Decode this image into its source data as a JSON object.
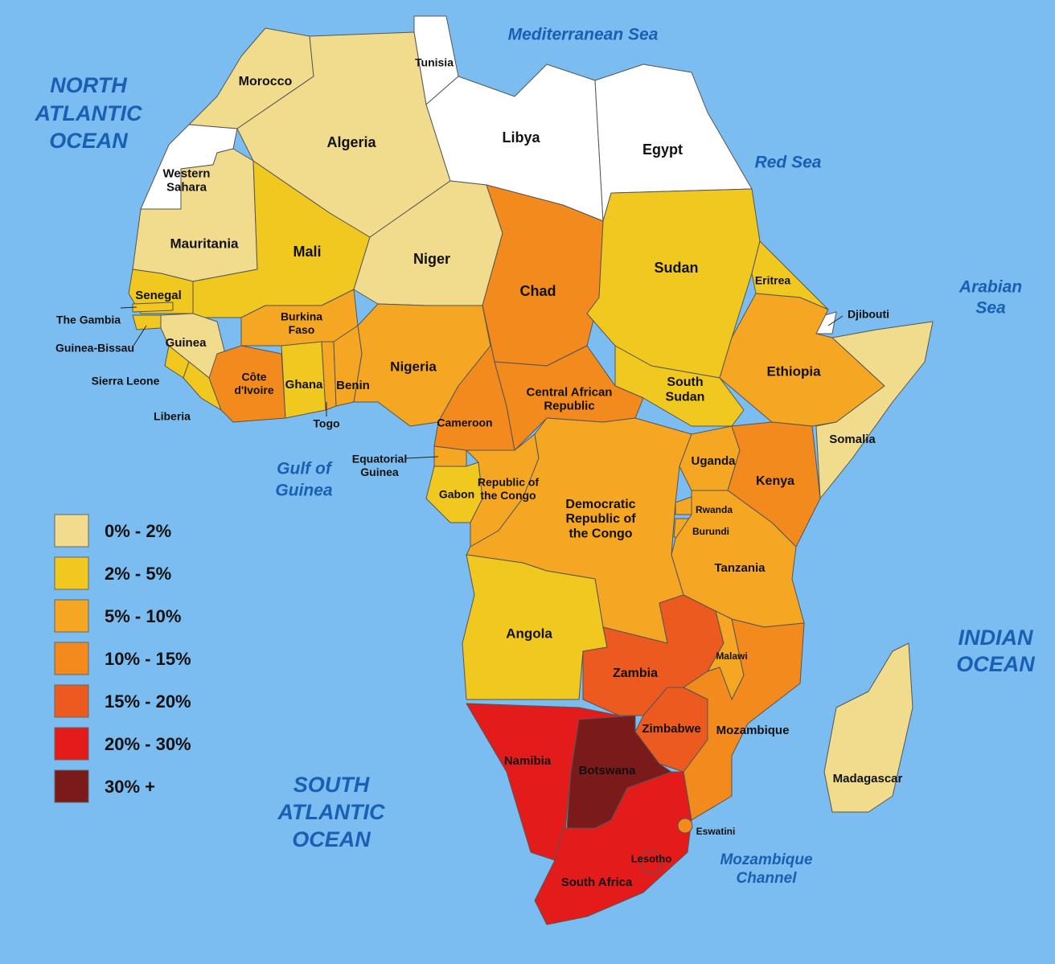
{
  "map": {
    "ocean_color": "#7bbdf0",
    "no_data_color": "#ffffff",
    "legend": [
      {
        "label": "0% - 2%",
        "color": "#f0dc8c"
      },
      {
        "label": "2% - 5%",
        "color": "#f0c820"
      },
      {
        "label": "5% - 10%",
        "color": "#f5a623"
      },
      {
        "label": "10% - 15%",
        "color": "#f28a1e"
      },
      {
        "label": "15% - 20%",
        "color": "#ec5a20"
      },
      {
        "label": "20% - 30%",
        "color": "#e31b1b"
      },
      {
        "label": "30% +",
        "color": "#7a1a1a"
      }
    ],
    "countries": [
      {
        "label": [
          "Morocco"
        ],
        "class": 0
      },
      {
        "label": [
          "Western",
          "Sahara"
        ],
        "class": null
      },
      {
        "label": [
          "Algeria"
        ],
        "class": 0
      },
      {
        "label": [
          "Tunisia"
        ],
        "class": null
      },
      {
        "label": [
          "Libya"
        ],
        "class": null
      },
      {
        "label": [
          "Egypt"
        ],
        "class": null
      },
      {
        "label": [
          "Mauritania"
        ],
        "class": 0
      },
      {
        "label": [
          "Mali"
        ],
        "class": 1
      },
      {
        "label": [
          "Niger"
        ],
        "class": 0
      },
      {
        "label": [
          "Chad"
        ],
        "class": 3
      },
      {
        "label": [
          "Sudan"
        ],
        "class": 1
      },
      {
        "label": [
          "Eritrea"
        ],
        "class": 1
      },
      {
        "label": [
          "Djibouti"
        ],
        "class": null
      },
      {
        "label": [
          "Ethiopia"
        ],
        "class": 2
      },
      {
        "label": [
          "Somalia"
        ],
        "class": 0
      },
      {
        "label": [
          "South",
          "Sudan"
        ],
        "class": 1
      },
      {
        "label": [
          "Senegal"
        ],
        "class": 1
      },
      {
        "label": [
          "The Gambia"
        ],
        "class": 1
      },
      {
        "label": [
          "Guinea-Bissau"
        ],
        "class": 1
      },
      {
        "label": [
          "Guinea"
        ],
        "class": 0
      },
      {
        "label": [
          "Sierra Leone"
        ],
        "class": 1
      },
      {
        "label": [
          "Liberia"
        ],
        "class": 1
      },
      {
        "label": [
          "Côte",
          "d'Ivoire"
        ],
        "class": 3
      },
      {
        "label": [
          "Burkina",
          "Faso"
        ],
        "class": 2
      },
      {
        "label": [
          "Ghana"
        ],
        "class": 1
      },
      {
        "label": [
          "Togo"
        ],
        "class": 2
      },
      {
        "label": [
          "Benin"
        ],
        "class": 2
      },
      {
        "label": [
          "Nigeria"
        ],
        "class": 2
      },
      {
        "label": [
          "Cameroon"
        ],
        "class": 3
      },
      {
        "label": [
          "Central African",
          "Republic"
        ],
        "class": 3
      },
      {
        "label": [
          "Equatorial",
          "Guinea"
        ],
        "class": 2
      },
      {
        "label": [
          "Gabon"
        ],
        "class": 1
      },
      {
        "label": [
          "Republic of",
          "the Congo"
        ],
        "class": 2
      },
      {
        "label": [
          "Democratic",
          "Republic of",
          "the Congo"
        ],
        "class": 2
      },
      {
        "label": [
          "Uganda"
        ],
        "class": 2
      },
      {
        "label": [
          "Kenya"
        ],
        "class": 3
      },
      {
        "label": [
          "Rwanda"
        ],
        "class": 2
      },
      {
        "label": [
          "Burundi"
        ],
        "class": 2
      },
      {
        "label": [
          "Tanzania"
        ],
        "class": 2
      },
      {
        "label": [
          "Angola"
        ],
        "class": 1
      },
      {
        "label": [
          "Zambia"
        ],
        "class": 4
      },
      {
        "label": [
          "Malawi"
        ],
        "class": 2
      },
      {
        "label": [
          "Mozambique"
        ],
        "class": 3
      },
      {
        "label": [
          "Zimbabwe"
        ],
        "class": 4
      },
      {
        "label": [
          "Namibia"
        ],
        "class": 5
      },
      {
        "label": [
          "Botswana"
        ],
        "class": 6
      },
      {
        "label": [
          "South Africa"
        ],
        "class": 5
      },
      {
        "label": [
          "Lesotho"
        ],
        "class": 5
      },
      {
        "label": [
          "Eswatini"
        ],
        "class": 3
      },
      {
        "label": [
          "Madagascar"
        ],
        "class": 0
      }
    ],
    "water_labels": [
      {
        "label": [
          "NORTH",
          "ATLANTIC",
          "OCEAN"
        ]
      },
      {
        "label": [
          "Mediterranean Sea"
        ]
      },
      {
        "label": [
          "Red Sea"
        ]
      },
      {
        "label": [
          "Arabian",
          "Sea"
        ]
      },
      {
        "label": [
          "Gulf of",
          "Guinea"
        ]
      },
      {
        "label": [
          "INDIAN",
          "OCEAN"
        ]
      },
      {
        "label": [
          "SOUTH",
          "ATLANTIC",
          "OCEAN"
        ]
      },
      {
        "label": [
          "Mozambique",
          "Channel"
        ]
      }
    ]
  }
}
